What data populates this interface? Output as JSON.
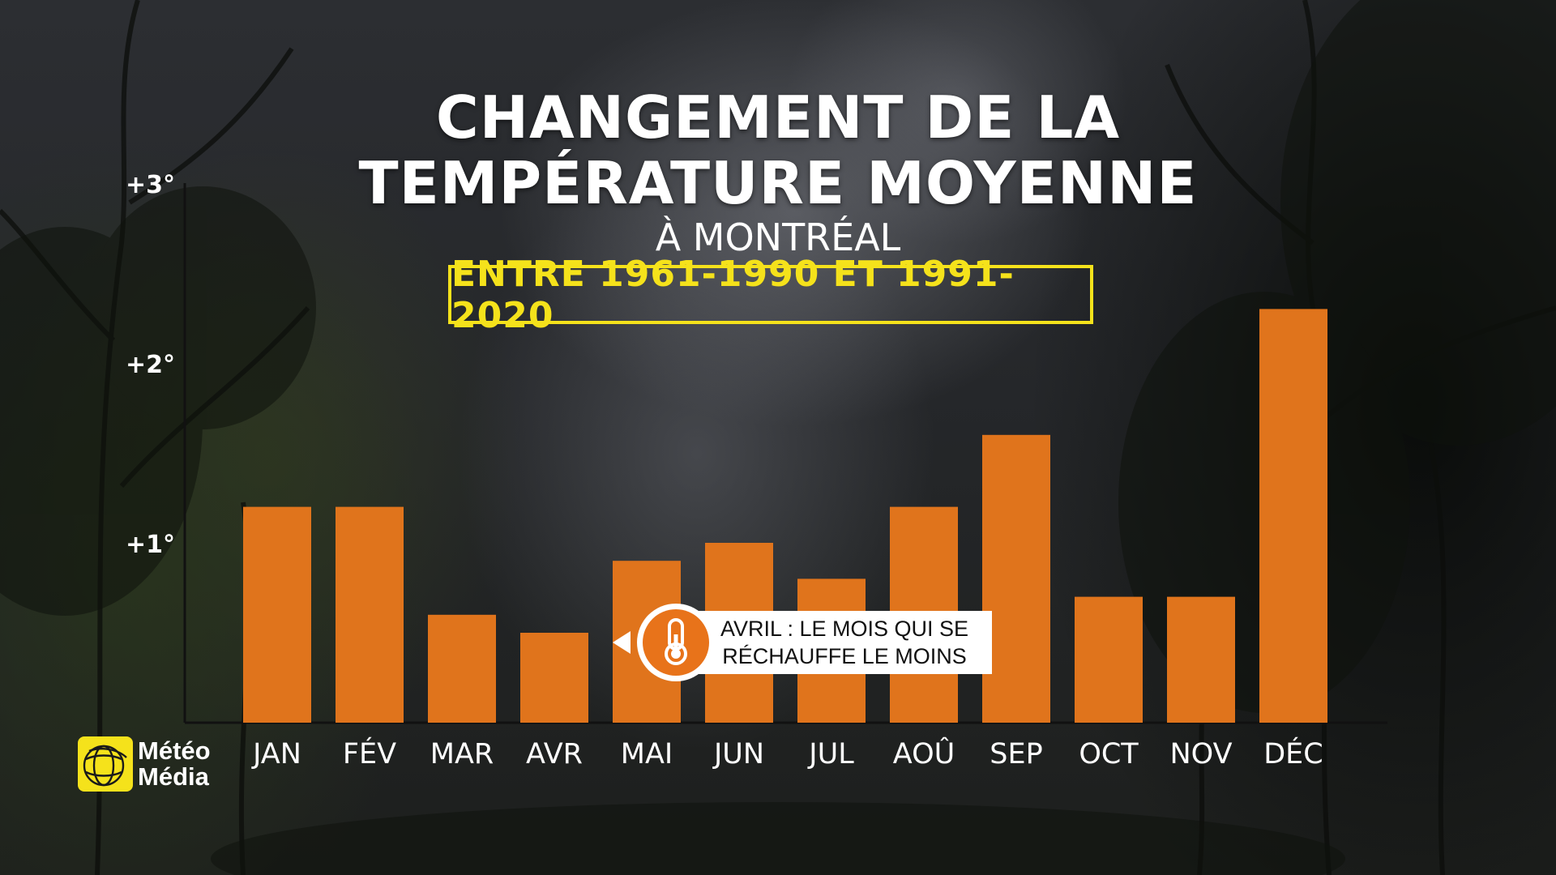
{
  "title_line_1": "CHANGEMENT DE LA",
  "title_line_2": "TEMPÉRATURE MOYENNE",
  "subtitle": "À MONTRÉAL",
  "period": "ENTRE 1961-1990 ET 1991-2020",
  "callout": {
    "line_1": "AVRIL : LE MOIS QUI SE",
    "line_2": "RÉCHAUFFE LE MOINS",
    "icon": "thermometer-icon"
  },
  "logo": {
    "line_1": "Météo",
    "line_2": "Média",
    "icon": "globe-icon"
  },
  "colors": {
    "bar": "#e0741c",
    "accent_yellow": "#f5e21b",
    "callout_orange": "#e8731a",
    "text": "#ffffff"
  },
  "chart_data": {
    "type": "bar",
    "title": "CHANGEMENT DE LA TEMPÉRATURE MOYENNE",
    "subtitle": "À MONTRÉAL",
    "categories": [
      "JAN",
      "FÉV",
      "MAR",
      "AVR",
      "MAI",
      "JUN",
      "JUL",
      "AOÛ",
      "SEP",
      "OCT",
      "NOV",
      "DÉC"
    ],
    "values": [
      1.2,
      1.2,
      0.6,
      0.5,
      0.9,
      1.0,
      0.8,
      1.2,
      1.6,
      0.7,
      0.7,
      2.3
    ],
    "y_ticks": [
      {
        "value": 1,
        "label": "+1°"
      },
      {
        "value": 2,
        "label": "+2°"
      },
      {
        "value": 3,
        "label": "+3°"
      }
    ],
    "ylim": [
      0,
      3
    ],
    "xlabel": "",
    "ylabel": "",
    "grid": false,
    "legend": "none"
  }
}
